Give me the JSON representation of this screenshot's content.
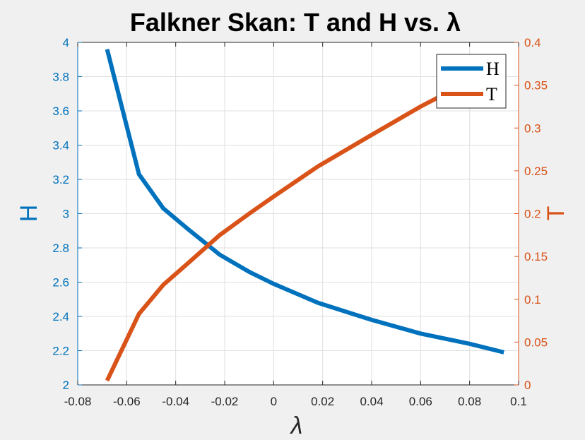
{
  "chart_data": {
    "type": "line",
    "title": "Falkner Skan: T and H vs. λ",
    "xlabel": "λ",
    "xlim": [
      -0.08,
      0.1
    ],
    "xticks": [
      -0.08,
      -0.06,
      -0.04,
      -0.02,
      0,
      0.02,
      0.04,
      0.06,
      0.08,
      0.1
    ],
    "xtick_labels": [
      "-0.08",
      "-0.06",
      "-0.04",
      "-0.02",
      "0",
      "0.02",
      "0.04",
      "0.06",
      "0.08",
      "0.1"
    ],
    "y_left": {
      "label": "H",
      "lim": [
        2,
        4
      ],
      "ticks": [
        2,
        2.2,
        2.4,
        2.6,
        2.8,
        3,
        3.2,
        3.4,
        3.6,
        3.8,
        4
      ],
      "tick_labels": [
        "2",
        "2.2",
        "2.4",
        "2.6",
        "2.8",
        "3",
        "3.2",
        "3.4",
        "3.6",
        "3.8",
        "4"
      ],
      "color": "#0072bd"
    },
    "y_right": {
      "label": "T",
      "lim": [
        0,
        0.4
      ],
      "ticks": [
        0,
        0.05,
        0.1,
        0.15,
        0.2,
        0.25,
        0.3,
        0.35,
        0.4
      ],
      "tick_labels": [
        "0",
        "0.05",
        "0.1",
        "0.15",
        "0.2",
        "0.25",
        "0.3",
        "0.35",
        "0.4"
      ],
      "color": "#d95319"
    },
    "grid": true,
    "legend_position": "top-right",
    "series": [
      {
        "name": "H",
        "axis": "left",
        "color": "#0072bd",
        "x": [
          -0.068,
          -0.055,
          -0.045,
          -0.035,
          -0.022,
          -0.01,
          0,
          0.018,
          0.04,
          0.06,
          0.08,
          0.094
        ],
        "y": [
          3.96,
          3.23,
          3.03,
          2.91,
          2.76,
          2.66,
          2.59,
          2.48,
          2.38,
          2.3,
          2.24,
          2.19
        ]
      },
      {
        "name": "T",
        "axis": "right",
        "color": "#d95319",
        "x": [
          -0.068,
          -0.055,
          -0.045,
          -0.035,
          -0.022,
          -0.01,
          0,
          0.018,
          0.04,
          0.06,
          0.07
        ],
        "y": [
          0.005,
          0.083,
          0.117,
          0.142,
          0.175,
          0.2,
          0.22,
          0.255,
          0.292,
          0.325,
          0.34
        ]
      }
    ]
  }
}
